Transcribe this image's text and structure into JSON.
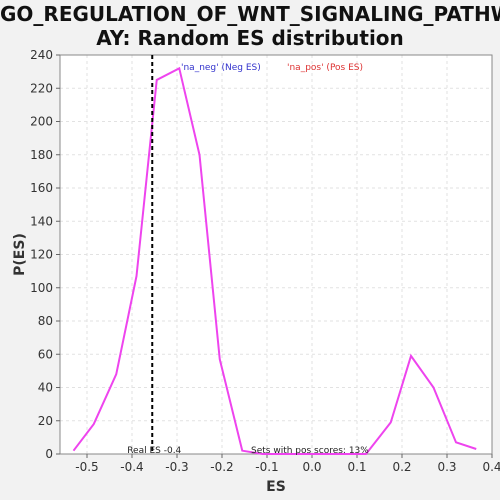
{
  "chart_data": {
    "type": "line",
    "title_lines": [
      "GO_REGULATION_OF_WNT_SIGNALING_PATHW",
      "AY: Random ES distribution"
    ],
    "xlabel": "ES",
    "ylabel": "P(ES)",
    "xlim": [
      -0.56,
      0.4
    ],
    "ylim": [
      0,
      240
    ],
    "x_ticks": [
      -0.5,
      -0.4,
      -0.3,
      -0.2,
      -0.1,
      0.0,
      0.1,
      0.2,
      0.3,
      0.4
    ],
    "x_tick_labels": [
      "-0.5",
      "-0.4",
      "-0.3",
      "-0.2",
      "-0.1",
      "0.0",
      "0.1",
      "0.2",
      "0.3",
      "0.4"
    ],
    "y_ticks": [
      0,
      20,
      40,
      60,
      80,
      100,
      120,
      140,
      160,
      180,
      200,
      220,
      240
    ],
    "y_tick_labels": [
      "0",
      "20",
      "40",
      "60",
      "80",
      "100",
      "120",
      "140",
      "160",
      "180",
      "200",
      "220",
      "240"
    ],
    "grid": true,
    "series": [
      {
        "color": "#ee44ee",
        "x": [
          -0.53,
          -0.485,
          -0.435,
          -0.39,
          -0.345,
          -0.295,
          -0.25,
          -0.205,
          -0.155,
          -0.11,
          -0.065,
          -0.02,
          0.025,
          0.07,
          0.12,
          0.175,
          0.22,
          0.27,
          0.32,
          0.365
        ],
        "y": [
          2,
          18,
          48,
          107,
          225,
          232,
          180,
          57,
          2,
          0,
          0,
          0,
          0,
          0,
          0,
          19,
          59,
          40,
          7,
          3
        ]
      }
    ],
    "real_es": {
      "x": -0.355,
      "color": "#000000",
      "label": "Real ES -0.4"
    },
    "legend": [
      {
        "text": "'na_neg' (Neg ES)",
        "color": "#3333cc"
      },
      {
        "text": "'na_pos' (Pos ES)",
        "color": "#dd3333"
      }
    ],
    "legend_placement": "top",
    "annotations": [
      "Sets with pos scores: 13%"
    ]
  }
}
